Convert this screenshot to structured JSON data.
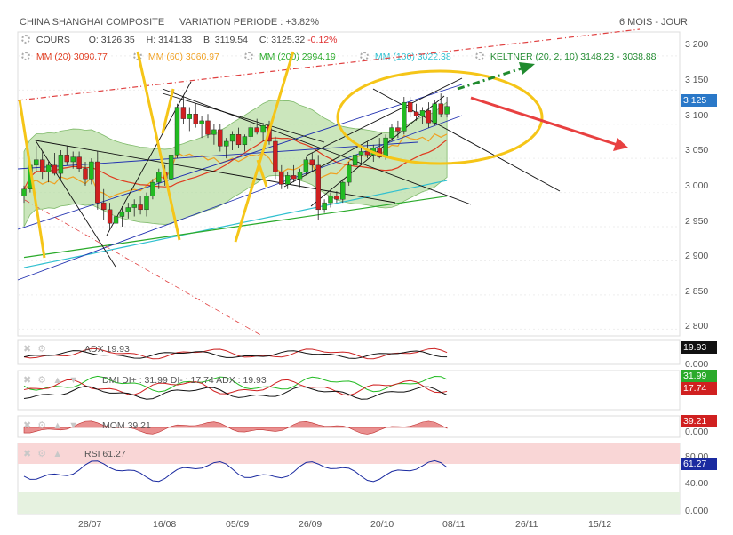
{
  "header": {
    "title": "CHINA SHANGHAI COMPOSITE",
    "variation": "VARIATION PERIODE : +3.82%",
    "period": "6 MOIS - JOUR"
  },
  "legend": {
    "cours_label": "COURS",
    "open": "O: 3126.35",
    "high": "H: 3141.33",
    "low": "B: 3119.54",
    "close": "C: 3125.32",
    "change": "-0.12%",
    "mm20": "MM (20) 3090.77",
    "mm60": "MM (60) 3060.97",
    "mm200": "MM (200) 2994.19",
    "mm100": "MM (100) 3022.38",
    "keltner": "KELTNER (20, 2, 10) 3148.23 - 3038.88"
  },
  "price_axis": {
    "ticks": [
      "3 200",
      "3 150",
      "3 100",
      "3 050",
      "3 000",
      "2 950",
      "2 900",
      "2 850",
      "2 800"
    ],
    "current": "3 125"
  },
  "x_axis": {
    "ticks": [
      "28/07",
      "16/08",
      "05/09",
      "26/09",
      "20/10",
      "08/11",
      "26/11",
      "15/12"
    ]
  },
  "indicators": {
    "adx": {
      "label": "ADX 19.93",
      "value": "19.93",
      "axis": [
        "0.000"
      ]
    },
    "dmi": {
      "label": "DMI DI+ : 31.99  DI- : 17.74  ADX : 19.93",
      "di_plus": "31.99",
      "di_minus": "17.74"
    },
    "mom": {
      "label": "MOM 39.21",
      "value": "39.21",
      "axis": [
        "0.000"
      ]
    },
    "rsi": {
      "label": "RSI 61.27",
      "value": "61.27",
      "axis": [
        "80.00",
        "61.27",
        "40.00",
        "0.000"
      ]
    }
  },
  "colors": {
    "up": "#22bb22",
    "down": "#d02020",
    "mm20": "#e03a1e",
    "mm60": "#f0a020",
    "mm200": "#2aaa2a",
    "mm100": "#30c0d0",
    "keltner_fill": "#b5dca0",
    "annot_yellow": "#f5c518",
    "annot_red": "#e84040",
    "annot_green": "#1f8a2e"
  },
  "chart_data": {
    "type": "candlestick",
    "title": "CHINA SHANGHAI COMPOSITE",
    "ylim": [
      2790,
      3235
    ],
    "ohlc": [
      [
        2995,
        3010,
        2985,
        3005
      ],
      [
        3005,
        3045,
        3000,
        3040
      ],
      [
        3040,
        3068,
        3030,
        3048
      ],
      [
        3048,
        3060,
        3020,
        3030
      ],
      [
        3030,
        3045,
        3015,
        3040
      ],
      [
        3040,
        3058,
        3025,
        3028
      ],
      [
        3028,
        3062,
        3018,
        3055
      ],
      [
        3055,
        3068,
        3040,
        3045
      ],
      [
        3045,
        3060,
        3035,
        3052
      ],
      [
        3052,
        3060,
        3030,
        3035
      ],
      [
        3035,
        3045,
        3010,
        3020
      ],
      [
        3020,
        3050,
        3012,
        3045
      ],
      [
        3045,
        3060,
        2975,
        2985
      ],
      [
        2985,
        3005,
        2960,
        2975
      ],
      [
        2975,
        2985,
        2945,
        2955
      ],
      [
        2955,
        2975,
        2940,
        2965
      ],
      [
        2965,
        2980,
        2950,
        2972
      ],
      [
        2972,
        2985,
        2962,
        2978
      ],
      [
        2978,
        2990,
        2965,
        2982
      ],
      [
        2982,
        2995,
        2968,
        2975
      ],
      [
        2975,
        3000,
        2965,
        2995
      ],
      [
        2995,
        3020,
        2990,
        3015
      ],
      [
        3015,
        3035,
        3005,
        3030
      ],
      [
        3030,
        3040,
        3010,
        3020
      ],
      [
        3020,
        3060,
        3015,
        3055
      ],
      [
        3055,
        3130,
        3050,
        3125
      ],
      [
        3125,
        3142,
        3100,
        3108
      ],
      [
        3108,
        3125,
        3090,
        3115
      ],
      [
        3115,
        3130,
        3095,
        3100
      ],
      [
        3100,
        3112,
        3080,
        3105
      ],
      [
        3105,
        3115,
        3080,
        3085
      ],
      [
        3085,
        3100,
        3070,
        3092
      ],
      [
        3092,
        3100,
        3060,
        3068
      ],
      [
        3068,
        3080,
        3050,
        3075
      ],
      [
        3075,
        3090,
        3062,
        3085
      ],
      [
        3085,
        3095,
        3065,
        3070
      ],
      [
        3070,
        3085,
        3060,
        3082
      ],
      [
        3082,
        3100,
        3075,
        3095
      ],
      [
        3095,
        3108,
        3085,
        3088
      ],
      [
        3088,
        3102,
        3075,
        3098
      ],
      [
        3098,
        3105,
        3070,
        3075
      ],
      [
        3075,
        3082,
        3020,
        3030
      ],
      [
        3030,
        3040,
        3005,
        3012
      ],
      [
        3012,
        3030,
        3005,
        3025
      ],
      [
        3025,
        3040,
        3015,
        3020
      ],
      [
        3020,
        3035,
        3008,
        3030
      ],
      [
        3030,
        3052,
        3025,
        3048
      ],
      [
        3048,
        3058,
        3030,
        3040
      ],
      [
        3040,
        3055,
        2960,
        2975
      ],
      [
        2975,
        2990,
        2970,
        2985
      ],
      [
        2985,
        3000,
        2978,
        2995
      ],
      [
        2995,
        3002,
        2985,
        2990
      ],
      [
        2990,
        3020,
        2985,
        3015
      ],
      [
        3015,
        3045,
        3010,
        3040
      ],
      [
        3040,
        3060,
        3035,
        3055
      ],
      [
        3055,
        3065,
        3040,
        3060
      ],
      [
        3060,
        3075,
        3050,
        3055
      ],
      [
        3055,
        3070,
        3045,
        3065
      ],
      [
        3065,
        3080,
        3050,
        3052
      ],
      [
        3052,
        3085,
        3048,
        3080
      ],
      [
        3080,
        3100,
        3075,
        3095
      ],
      [
        3095,
        3105,
        3080,
        3090
      ],
      [
        3090,
        3140,
        3085,
        3132
      ],
      [
        3132,
        3140,
        3110,
        3118
      ],
      [
        3118,
        3130,
        3105,
        3112
      ],
      [
        3112,
        3125,
        3100,
        3120
      ],
      [
        3120,
        3132,
        3095,
        3102
      ],
      [
        3102,
        3135,
        3098,
        3130
      ],
      [
        3130,
        3145,
        3110,
        3115
      ],
      [
        3115,
        3140,
        3110,
        3126
      ]
    ],
    "indicators": {
      "ADX": 19.93,
      "DI_plus": 31.99,
      "DI_minus": 17.74,
      "MOM": 39.21,
      "RSI": 61.27
    }
  }
}
